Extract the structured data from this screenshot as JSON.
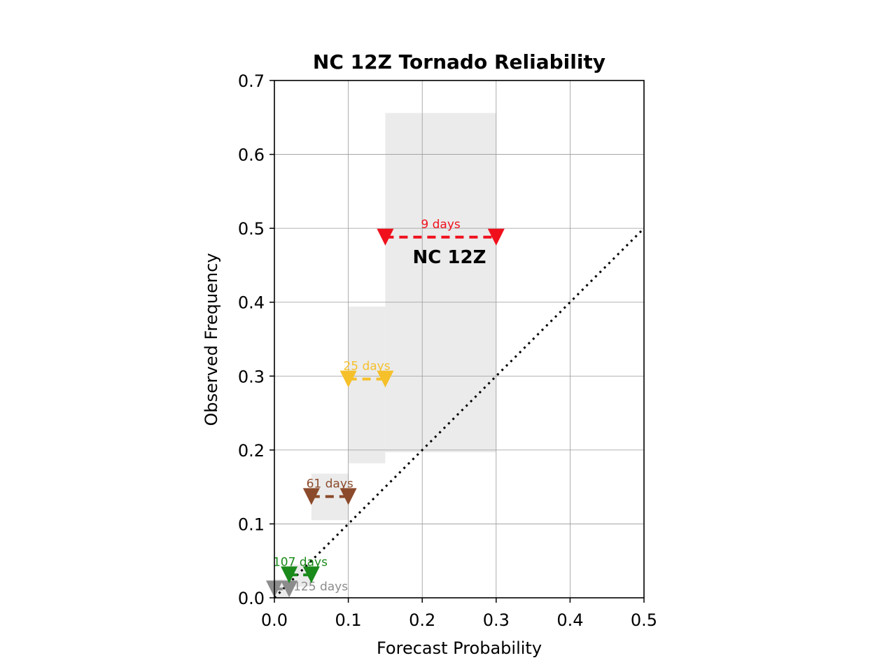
{
  "chart_data": {
    "type": "scatter",
    "title": "NC 12Z Tornado Reliability",
    "xlabel": "Forecast Probability",
    "ylabel": "Observed Frequency",
    "xlim": [
      0,
      0.5
    ],
    "ylim": [
      0,
      0.7
    ],
    "x_ticks": [
      "0.0",
      "0.1",
      "0.2",
      "0.3",
      "0.4",
      "0.5"
    ],
    "y_ticks": [
      "0.0",
      "0.1",
      "0.2",
      "0.3",
      "0.4",
      "0.5",
      "0.6",
      "0.7"
    ],
    "grid": true,
    "annotation": "NC 12Z",
    "reference_line": {
      "x": [
        0,
        0.5
      ],
      "y": [
        0,
        0.5
      ],
      "style": "dotted",
      "color": "#000000"
    },
    "bins": [
      {
        "x_low": 0.0,
        "x_high": 0.02,
        "observed": 0.012,
        "ci": [
          0.0,
          0.025
        ],
        "days": "125 days",
        "color": "#8c8c8c"
      },
      {
        "x_low": 0.02,
        "x_high": 0.05,
        "observed": 0.031,
        "ci": [
          0.015,
          0.045
        ],
        "days": "107 days",
        "color": "#1a8a1a"
      },
      {
        "x_low": 0.05,
        "x_high": 0.1,
        "observed": 0.137,
        "ci": [
          0.105,
          0.168
        ],
        "days": "61 days",
        "color": "#8b4a2b"
      },
      {
        "x_low": 0.1,
        "x_high": 0.15,
        "observed": 0.296,
        "ci": [
          0.182,
          0.394
        ],
        "days": "25 days",
        "color": "#f5c02a"
      },
      {
        "x_low": 0.15,
        "x_high": 0.3,
        "observed": 0.488,
        "ci": [
          0.197,
          0.656
        ],
        "days": "9 days",
        "color": "#f0101c"
      }
    ]
  }
}
